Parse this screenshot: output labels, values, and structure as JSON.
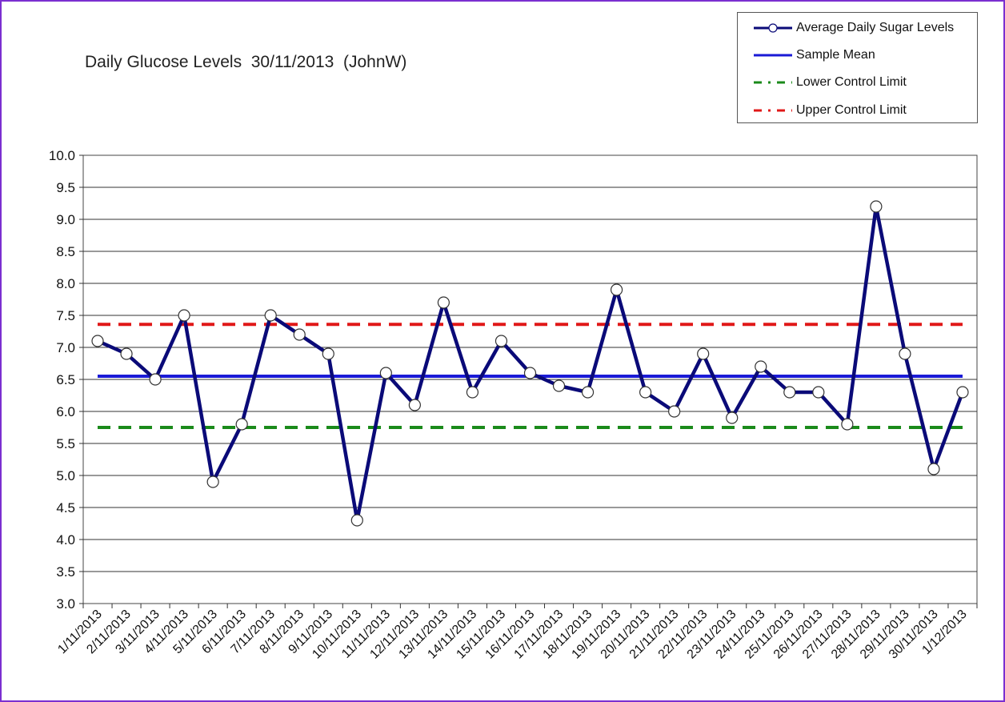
{
  "title": "Daily Glucose Levels  30/11/2013  (JohnW)",
  "colors": {
    "frame": "#7b2fd0",
    "series": "#0a0a78",
    "mean": "#1a1ad6",
    "lcl": "#1a8a1a",
    "ucl": "#e01818"
  },
  "legend": {
    "items": [
      {
        "label": "Average Daily Sugar Levels",
        "style": "series"
      },
      {
        "label": "Sample Mean",
        "style": "mean"
      },
      {
        "label": "Lower Control Limit",
        "style": "lcl"
      },
      {
        "label": "Upper Control Limit",
        "style": "ucl"
      }
    ],
    "position": "top-right"
  },
  "chart_data": {
    "type": "line",
    "title": "Daily Glucose Levels  30/11/2013  (JohnW)",
    "xlabel": "",
    "ylabel": "",
    "ylim": [
      3.0,
      10.0
    ],
    "ystep": 0.5,
    "grid": "horizontal",
    "categories": [
      "1/11/2013",
      "2/11/2013",
      "3/11/2013",
      "4/11/2013",
      "5/11/2013",
      "6/11/2013",
      "7/11/2013",
      "8/11/2013",
      "9/11/2013",
      "10/11/2013",
      "11/11/2013",
      "12/11/2013",
      "13/11/2013",
      "14/11/2013",
      "15/11/2013",
      "16/11/2013",
      "17/11/2013",
      "18/11/2013",
      "19/11/2013",
      "20/11/2013",
      "21/11/2013",
      "22/11/2013",
      "23/11/2013",
      "24/11/2013",
      "25/11/2013",
      "26/11/2013",
      "27/11/2013",
      "28/11/2013",
      "29/11/2013",
      "30/11/2013",
      "1/12/2013"
    ],
    "series": [
      {
        "name": "Average Daily Sugar Levels",
        "values": [
          7.1,
          6.9,
          6.5,
          7.5,
          4.9,
          5.8,
          7.5,
          7.2,
          6.9,
          4.3,
          6.6,
          6.1,
          7.7,
          6.3,
          7.1,
          6.6,
          6.4,
          6.3,
          7.9,
          6.3,
          6.0,
          6.9,
          5.9,
          6.7,
          6.3,
          6.3,
          5.8,
          9.2,
          6.9,
          5.1,
          6.3
        ]
      },
      {
        "name": "Sample Mean",
        "value": 6.55
      },
      {
        "name": "Lower Control Limit",
        "value": 5.75
      },
      {
        "name": "Upper Control Limit",
        "value": 7.36
      }
    ]
  }
}
